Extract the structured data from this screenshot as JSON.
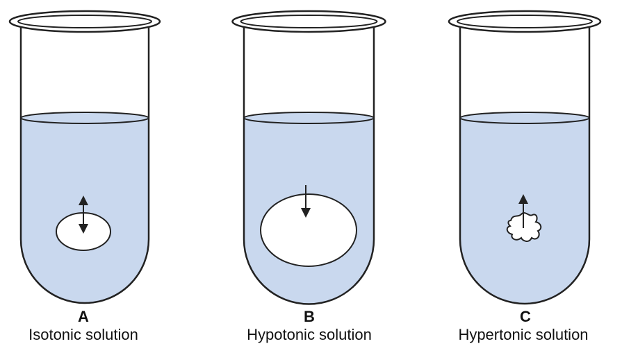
{
  "colors": {
    "liquid": "#c9d8ee",
    "outline": "#222222",
    "cell_fill": "#ffffff",
    "background": "#ffffff"
  },
  "tubes": [
    {
      "letter": "A",
      "caption": "Isotonic solution",
      "cell": "normal-cell",
      "water_flow": "both-directions"
    },
    {
      "letter": "B",
      "caption": "Hypotonic solution",
      "cell": "swollen-cell",
      "water_flow": "into-cell"
    },
    {
      "letter": "C",
      "caption": "Hypertonic solution",
      "cell": "shrunken-cell",
      "water_flow": "out-of-cell"
    }
  ]
}
